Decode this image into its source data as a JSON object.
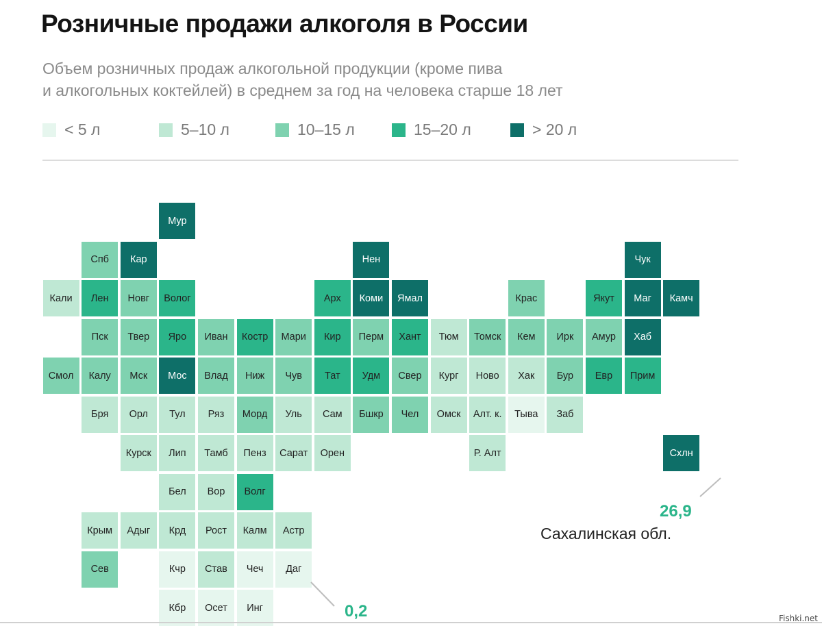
{
  "title": "Розничные продажи алкоголя в России",
  "subtitle_line1": "Объем розничных продаж алкогольной продукции (кроме пива",
  "subtitle_line2": "и алкогольных коктейлей) в среднем за год на человека старше 18 лет",
  "colors": {
    "lt5": "#e6f6ee",
    "5-10": "#bfe8d4",
    "10-15": "#7fd2b0",
    "15-20": "#2bb58a",
    "gt20": "#0e6f68"
  },
  "legend": [
    {
      "label": "< 5 л",
      "class": "lt5"
    },
    {
      "label": "5–10 л",
      "class": "5-10"
    },
    {
      "label": "10–15 л",
      "class": "10-15"
    },
    {
      "label": "15–20 л",
      "class": "15-20"
    },
    {
      "label": "> 20 л",
      "class": "gt20"
    }
  ],
  "regions": [
    {
      "label": "Мур",
      "col": 4,
      "row": 0,
      "class": "gt20"
    },
    {
      "label": "Спб",
      "col": 2,
      "row": 1,
      "class": "10-15"
    },
    {
      "label": "Кар",
      "col": 3,
      "row": 1,
      "class": "gt20"
    },
    {
      "label": "Нен",
      "col": 9,
      "row": 1,
      "class": "gt20"
    },
    {
      "label": "Чук",
      "col": 16,
      "row": 1,
      "class": "gt20"
    },
    {
      "label": "Кали",
      "col": 1,
      "row": 2,
      "class": "5-10"
    },
    {
      "label": "Лен",
      "col": 2,
      "row": 2,
      "class": "15-20"
    },
    {
      "label": "Новг",
      "col": 3,
      "row": 2,
      "class": "10-15"
    },
    {
      "label": "Волог",
      "col": 4,
      "row": 2,
      "class": "15-20"
    },
    {
      "label": "Арх",
      "col": 8,
      "row": 2,
      "class": "15-20"
    },
    {
      "label": "Коми",
      "col": 9,
      "row": 2,
      "class": "gt20"
    },
    {
      "label": "Ямал",
      "col": 10,
      "row": 2,
      "class": "gt20"
    },
    {
      "label": "Крас",
      "col": 13,
      "row": 2,
      "class": "10-15"
    },
    {
      "label": "Якут",
      "col": 15,
      "row": 2,
      "class": "15-20"
    },
    {
      "label": "Маг",
      "col": 16,
      "row": 2,
      "class": "gt20"
    },
    {
      "label": "Камч",
      "col": 17,
      "row": 2,
      "class": "gt20"
    },
    {
      "label": "Пск",
      "col": 2,
      "row": 3,
      "class": "10-15"
    },
    {
      "label": "Твер",
      "col": 3,
      "row": 3,
      "class": "10-15"
    },
    {
      "label": "Яро",
      "col": 4,
      "row": 3,
      "class": "15-20"
    },
    {
      "label": "Иван",
      "col": 5,
      "row": 3,
      "class": "10-15"
    },
    {
      "label": "Костр",
      "col": 6,
      "row": 3,
      "class": "15-20"
    },
    {
      "label": "Мари",
      "col": 7,
      "row": 3,
      "class": "10-15"
    },
    {
      "label": "Кир",
      "col": 8,
      "row": 3,
      "class": "15-20"
    },
    {
      "label": "Перм",
      "col": 9,
      "row": 3,
      "class": "10-15"
    },
    {
      "label": "Хант",
      "col": 10,
      "row": 3,
      "class": "15-20"
    },
    {
      "label": "Тюм",
      "col": 11,
      "row": 3,
      "class": "5-10"
    },
    {
      "label": "Томск",
      "col": 12,
      "row": 3,
      "class": "10-15"
    },
    {
      "label": "Кем",
      "col": 13,
      "row": 3,
      "class": "10-15"
    },
    {
      "label": "Ирк",
      "col": 14,
      "row": 3,
      "class": "10-15"
    },
    {
      "label": "Амур",
      "col": 15,
      "row": 3,
      "class": "10-15"
    },
    {
      "label": "Хаб",
      "col": 16,
      "row": 3,
      "class": "gt20"
    },
    {
      "label": "Смол",
      "col": 1,
      "row": 4,
      "class": "10-15"
    },
    {
      "label": "Калу",
      "col": 2,
      "row": 4,
      "class": "10-15"
    },
    {
      "label": "Мск",
      "col": 3,
      "row": 4,
      "class": "10-15"
    },
    {
      "label": "Мос",
      "col": 4,
      "row": 4,
      "class": "gt20"
    },
    {
      "label": "Влад",
      "col": 5,
      "row": 4,
      "class": "10-15"
    },
    {
      "label": "Ниж",
      "col": 6,
      "row": 4,
      "class": "10-15"
    },
    {
      "label": "Чув",
      "col": 7,
      "row": 4,
      "class": "10-15"
    },
    {
      "label": "Тат",
      "col": 8,
      "row": 4,
      "class": "15-20"
    },
    {
      "label": "Удм",
      "col": 9,
      "row": 4,
      "class": "15-20"
    },
    {
      "label": "Свер",
      "col": 10,
      "row": 4,
      "class": "10-15"
    },
    {
      "label": "Кург",
      "col": 11,
      "row": 4,
      "class": "5-10"
    },
    {
      "label": "Ново",
      "col": 12,
      "row": 4,
      "class": "5-10"
    },
    {
      "label": "Хак",
      "col": 13,
      "row": 4,
      "class": "5-10"
    },
    {
      "label": "Бур",
      "col": 14,
      "row": 4,
      "class": "10-15"
    },
    {
      "label": "Евр",
      "col": 15,
      "row": 4,
      "class": "15-20"
    },
    {
      "label": "Прим",
      "col": 16,
      "row": 4,
      "class": "15-20"
    },
    {
      "label": "Бря",
      "col": 2,
      "row": 5,
      "class": "5-10"
    },
    {
      "label": "Орл",
      "col": 3,
      "row": 5,
      "class": "5-10"
    },
    {
      "label": "Тул",
      "col": 4,
      "row": 5,
      "class": "5-10"
    },
    {
      "label": "Ряз",
      "col": 5,
      "row": 5,
      "class": "5-10"
    },
    {
      "label": "Морд",
      "col": 6,
      "row": 5,
      "class": "10-15"
    },
    {
      "label": "Уль",
      "col": 7,
      "row": 5,
      "class": "5-10"
    },
    {
      "label": "Сам",
      "col": 8,
      "row": 5,
      "class": "5-10"
    },
    {
      "label": "Бшкр",
      "col": 9,
      "row": 5,
      "class": "10-15"
    },
    {
      "label": "Чел",
      "col": 10,
      "row": 5,
      "class": "10-15"
    },
    {
      "label": "Омск",
      "col": 11,
      "row": 5,
      "class": "5-10"
    },
    {
      "label": "Алт. к.",
      "col": 12,
      "row": 5,
      "class": "5-10"
    },
    {
      "label": "Тыва",
      "col": 13,
      "row": 5,
      "class": "lt5"
    },
    {
      "label": "Заб",
      "col": 14,
      "row": 5,
      "class": "5-10"
    },
    {
      "label": "Курск",
      "col": 3,
      "row": 6,
      "class": "5-10"
    },
    {
      "label": "Лип",
      "col": 4,
      "row": 6,
      "class": "5-10"
    },
    {
      "label": "Тамб",
      "col": 5,
      "row": 6,
      "class": "5-10"
    },
    {
      "label": "Пенз",
      "col": 6,
      "row": 6,
      "class": "5-10"
    },
    {
      "label": "Сарат",
      "col": 7,
      "row": 6,
      "class": "5-10"
    },
    {
      "label": "Орен",
      "col": 8,
      "row": 6,
      "class": "5-10"
    },
    {
      "label": "Р. Алт",
      "col": 12,
      "row": 6,
      "class": "5-10"
    },
    {
      "label": "Схлн",
      "col": 17,
      "row": 6,
      "class": "gt20"
    },
    {
      "label": "Бел",
      "col": 4,
      "row": 7,
      "class": "5-10"
    },
    {
      "label": "Вор",
      "col": 5,
      "row": 7,
      "class": "5-10"
    },
    {
      "label": "Волг",
      "col": 6,
      "row": 7,
      "class": "15-20"
    },
    {
      "label": "Крым",
      "col": 2,
      "row": 8,
      "class": "5-10"
    },
    {
      "label": "Адыг",
      "col": 3,
      "row": 8,
      "class": "5-10"
    },
    {
      "label": "Крд",
      "col": 4,
      "row": 8,
      "class": "5-10"
    },
    {
      "label": "Рост",
      "col": 5,
      "row": 8,
      "class": "5-10"
    },
    {
      "label": "Калм",
      "col": 6,
      "row": 8,
      "class": "5-10"
    },
    {
      "label": "Астр",
      "col": 7,
      "row": 8,
      "class": "5-10"
    },
    {
      "label": "Сев",
      "col": 2,
      "row": 9,
      "class": "10-15"
    },
    {
      "label": "Кчр",
      "col": 4,
      "row": 9,
      "class": "lt5"
    },
    {
      "label": "Став",
      "col": 5,
      "row": 9,
      "class": "5-10"
    },
    {
      "label": "Чеч",
      "col": 6,
      "row": 9,
      "class": "lt5"
    },
    {
      "label": "Даг",
      "col": 7,
      "row": 9,
      "class": "lt5"
    },
    {
      "label": "Кбр",
      "col": 4,
      "row": 10,
      "class": "lt5"
    },
    {
      "label": "Осет",
      "col": 5,
      "row": 10,
      "class": "lt5"
    },
    {
      "label": "Инг",
      "col": 6,
      "row": 10,
      "class": "lt5"
    }
  ],
  "callout_max": {
    "value": "26,9",
    "name": "Сахалинская обл."
  },
  "callout_min": {
    "value": "0,2"
  },
  "watermark": "Fishki.net"
}
